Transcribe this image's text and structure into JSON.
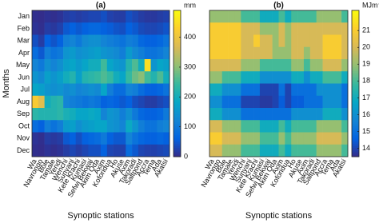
{
  "chart_data": [
    {
      "type": "heatmap",
      "title": "(a)",
      "x_label": "Synoptic stations",
      "y_label": "Months",
      "colormap": "parula",
      "colorbar_label": "mm",
      "clim": [
        0,
        490
      ],
      "cticks": [
        0,
        100,
        200,
        300,
        400
      ],
      "categories": [
        "Wa",
        "Navrongo",
        "Bole",
        "Tamale",
        "Yendi",
        "Wenchi",
        "Sunyani",
        "Kete Krachi",
        "Kumasi",
        "Sefwi Bekwai",
        "Akim Oda",
        "Axim",
        "Koforidua",
        "Ho",
        "Akuse",
        "Axim",
        "Takoradi",
        "Saltpond",
        "Accra",
        "Tema",
        "Ada",
        "Akatsi"
      ],
      "rows": [
        "Jan",
        "Feb",
        "Mar",
        "Apr",
        "May",
        "Jun",
        "Jul",
        "Aug",
        "Sep",
        "Oct",
        "Nov",
        "Dec"
      ],
      "values": [
        [
          5,
          3,
          8,
          5,
          10,
          20,
          25,
          20,
          25,
          30,
          30,
          40,
          25,
          20,
          20,
          40,
          30,
          20,
          15,
          15,
          20,
          25
        ],
        [
          10,
          5,
          20,
          15,
          25,
          50,
          60,
          50,
          60,
          70,
          70,
          60,
          55,
          45,
          40,
          60,
          50,
          35,
          30,
          30,
          35,
          45
        ],
        [
          40,
          20,
          60,
          45,
          60,
          110,
          120,
          100,
          130,
          140,
          140,
          120,
          110,
          100,
          90,
          110,
          100,
          70,
          60,
          60,
          70,
          90
        ],
        [
          80,
          50,
          110,
          90,
          100,
          150,
          160,
          140,
          150,
          160,
          170,
          150,
          140,
          130,
          110,
          160,
          130,
          110,
          90,
          90,
          100,
          120
        ],
        [
          120,
          100,
          140,
          120,
          140,
          170,
          180,
          160,
          180,
          200,
          200,
          250,
          180,
          160,
          150,
          220,
          260,
          200,
          450,
          150,
          180,
          170
        ],
        [
          150,
          130,
          170,
          150,
          170,
          200,
          220,
          170,
          220,
          230,
          240,
          260,
          240,
          200,
          180,
          240,
          280,
          300,
          250,
          220,
          260,
          200
        ],
        [
          180,
          170,
          150,
          140,
          150,
          130,
          140,
          120,
          130,
          140,
          130,
          180,
          110,
          80,
          80,
          120,
          110,
          80,
          60,
          60,
          70,
          90
        ],
        [
          420,
          380,
          200,
          220,
          230,
          120,
          110,
          100,
          90,
          100,
          90,
          60,
          70,
          60,
          50,
          60,
          40,
          30,
          20,
          20,
          30,
          40
        ],
        [
          230,
          220,
          220,
          220,
          230,
          210,
          200,
          180,
          180,
          190,
          180,
          120,
          150,
          140,
          110,
          140,
          100,
          70,
          60,
          60,
          70,
          100
        ],
        [
          80,
          60,
          110,
          90,
          110,
          160,
          170,
          140,
          160,
          170,
          180,
          180,
          150,
          140,
          120,
          190,
          150,
          110,
          90,
          90,
          110,
          120
        ],
        [
          10,
          5,
          20,
          15,
          20,
          50,
          60,
          40,
          60,
          70,
          80,
          100,
          60,
          50,
          50,
          120,
          90,
          70,
          60,
          60,
          70,
          60
        ],
        [
          5,
          3,
          10,
          5,
          10,
          20,
          30,
          20,
          30,
          40,
          40,
          60,
          30,
          25,
          25,
          80,
          50,
          30,
          25,
          25,
          30,
          35
        ]
      ]
    },
    {
      "type": "heatmap",
      "title": "(b)",
      "x_label": "Synoptic stations",
      "colormap": "parula",
      "colorbar_label": "MJm⁻²day⁻¹",
      "clim": [
        13.5,
        22.2
      ],
      "cticks": [
        14,
        15,
        16,
        17,
        18,
        19,
        20,
        21
      ],
      "categories": [
        "Wa",
        "Navrongo",
        "Bole",
        "Tamale",
        "Yendi",
        "Wenchi",
        "Sunyani",
        "Kete Krachi",
        "Kumasi",
        "Sefwi Bekwai",
        "Akim Oda",
        "Axim",
        "Koforidua",
        "Ho",
        "Akuse",
        "Axim",
        "Takoradi",
        "Saltpond",
        "Accra",
        "Tema",
        "Ada",
        "Akatsi"
      ],
      "values": [
        [
          19,
          19,
          19,
          19,
          19,
          18,
          18,
          18,
          17,
          17,
          17,
          18,
          17,
          18,
          18,
          18,
          18,
          19,
          19,
          19,
          19,
          18
        ],
        [
          21,
          21,
          21,
          21,
          21,
          20,
          20,
          20,
          19,
          19,
          19,
          20,
          19,
          20,
          20,
          20,
          20,
          20,
          20,
          20,
          20,
          20
        ],
        [
          21,
          21,
          21,
          21,
          21,
          20,
          20,
          21,
          20,
          20,
          19,
          20,
          19,
          20,
          20,
          20,
          20,
          20,
          21,
          21,
          21,
          20
        ],
        [
          21,
          21,
          21,
          21,
          21,
          20,
          20,
          20,
          20,
          20,
          19,
          19,
          19,
          20,
          20,
          19,
          20,
          20,
          21,
          21,
          21,
          20
        ],
        [
          20,
          20,
          20,
          20,
          20,
          19,
          19,
          19,
          18,
          18,
          18,
          18,
          18,
          19,
          19,
          18,
          19,
          19,
          20,
          20,
          20,
          19
        ],
        [
          19,
          19,
          18,
          18,
          18,
          17,
          17,
          17,
          16,
          16,
          16,
          16,
          16,
          17,
          17,
          16,
          17,
          17,
          18,
          18,
          18,
          17
        ],
        [
          17,
          17,
          16,
          16,
          16,
          15,
          15,
          15,
          14,
          14,
          14,
          15,
          14,
          15,
          15,
          15,
          15,
          16,
          16,
          16,
          16,
          15
        ],
        [
          16,
          16,
          15,
          15,
          15,
          14,
          14,
          14,
          13.8,
          13.8,
          14,
          14.5,
          14,
          14.5,
          14.5,
          15,
          15,
          15,
          16,
          16,
          16,
          15
        ],
        [
          17,
          17,
          16,
          16,
          16,
          15,
          15,
          15,
          15,
          15,
          15,
          15,
          15,
          16,
          16,
          16,
          16,
          16,
          17,
          17,
          17,
          16
        ],
        [
          20,
          20,
          19,
          19,
          19,
          18,
          18,
          18,
          17,
          17,
          17,
          18,
          17,
          18,
          18,
          18,
          18,
          19,
          19,
          19,
          19,
          18
        ],
        [
          21,
          21,
          20,
          20,
          20,
          19,
          19,
          19,
          18,
          18,
          18,
          19,
          18,
          19,
          19,
          19,
          19,
          20,
          20,
          20,
          20,
          19
        ],
        [
          20,
          20,
          19,
          19,
          19,
          18,
          18,
          18,
          17,
          17,
          17,
          18,
          17,
          18,
          18,
          18,
          18,
          19,
          19,
          19,
          19,
          18
        ]
      ]
    }
  ]
}
